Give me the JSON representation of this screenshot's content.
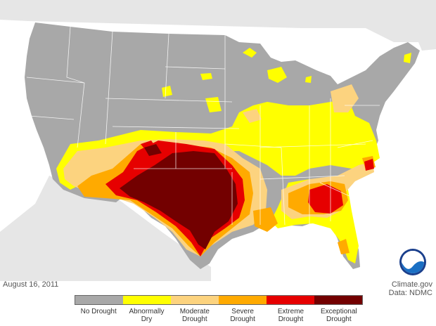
{
  "map": {
    "date": "August 16, 2011",
    "credit_site": "Climate.gov",
    "credit_data": "Data: NDMC",
    "logo_text": "NOAA",
    "legend": [
      {
        "label": "No Drought",
        "color": "#a8a8a8"
      },
      {
        "label": "Abnormally Dry",
        "color": "#ffff00"
      },
      {
        "label": "Moderate Drought",
        "color": "#fcd37f"
      },
      {
        "label": "Severe Drought",
        "color": "#ffaa00"
      },
      {
        "label": "Extreme Drought",
        "color": "#e60000"
      },
      {
        "label": "Exceptional Drought",
        "color": "#730000"
      }
    ],
    "colors": {
      "ocean": "#ffffff",
      "land_outside": "#e4e4e4",
      "state_border": "#ffffff"
    }
  }
}
